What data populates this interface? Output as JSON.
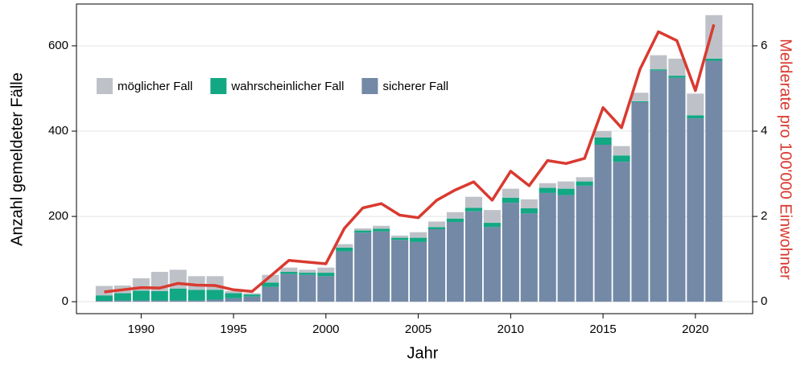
{
  "chart_data": {
    "type": "bar",
    "stacked": true,
    "x_label": "Jahr",
    "y_label": "Anzahl gemeldeter Fälle",
    "y2_label": "Melderate pro 100'000 Einwohner",
    "x": [
      1988,
      1989,
      1990,
      1991,
      1992,
      1993,
      1994,
      1995,
      1996,
      1997,
      1998,
      1999,
      2000,
      2001,
      2002,
      2003,
      2004,
      2005,
      2006,
      2007,
      2008,
      2009,
      2010,
      2011,
      2012,
      2013,
      2014,
      2015,
      2016,
      2017,
      2018,
      2019,
      2020,
      2021
    ],
    "series": [
      {
        "name": "möglicher Fall",
        "color": "#bec2c8",
        "values": [
          22,
          18,
          29,
          45,
          44,
          32,
          32,
          5,
          3,
          18,
          10,
          7,
          12,
          8,
          5,
          7,
          5,
          13,
          13,
          15,
          26,
          30,
          21,
          21,
          11,
          17,
          10,
          15,
          22,
          20,
          33,
          40,
          51,
          102
        ]
      },
      {
        "name": "wahrscheinlicher Fall",
        "color": "#12a884",
        "values": [
          13,
          17,
          23,
          22,
          28,
          25,
          23,
          12,
          5,
          10,
          5,
          5,
          8,
          9,
          5,
          6,
          5,
          10,
          5,
          8,
          8,
          10,
          12,
          12,
          12,
          15,
          10,
          17,
          15,
          2,
          3,
          5,
          7,
          5
        ]
      },
      {
        "name": "sicherer Fall",
        "color": "#7389a6",
        "values": [
          2,
          3,
          3,
          3,
          3,
          3,
          5,
          8,
          12,
          35,
          65,
          63,
          60,
          118,
          162,
          165,
          145,
          140,
          170,
          187,
          212,
          175,
          232,
          207,
          255,
          250,
          272,
          368,
          328,
          468,
          542,
          525,
          430,
          565
        ]
      }
    ],
    "line": {
      "type": "line",
      "axis": "y2",
      "color": "#d93a30",
      "values": [
        0.23,
        0.28,
        0.33,
        0.32,
        0.43,
        0.39,
        0.38,
        0.28,
        0.24,
        0.6,
        0.97,
        0.93,
        0.89,
        1.72,
        2.2,
        2.3,
        2.03,
        1.97,
        2.38,
        2.62,
        2.81,
        2.38,
        3.06,
        2.72,
        3.31,
        3.24,
        3.36,
        4.55,
        4.08,
        5.45,
        6.33,
        6.12,
        4.95,
        6.5
      ]
    },
    "xlim": [
      1986.5,
      2023.1
    ],
    "xticks": [
      1990,
      1995,
      2000,
      2005,
      2010,
      2015,
      2020
    ],
    "ylim": [
      -28,
      698
    ],
    "yticks": [
      0,
      200,
      400,
      600
    ],
    "y2lim": [
      -0.28,
      6.98
    ],
    "y2ticks": [
      0,
      2,
      4,
      6
    ],
    "grid": true,
    "legend": "top-left"
  }
}
